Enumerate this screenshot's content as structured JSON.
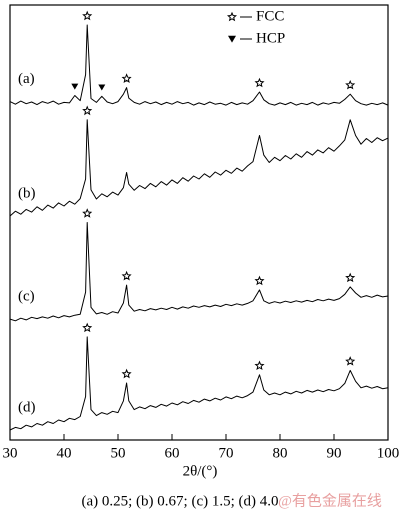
{
  "chart_data": {
    "type": "line",
    "x_label": "2θ/(°)",
    "caption": "(a) 0.25; (b) 0.67; (c) 1.5; (d) 4.0",
    "watermark": "@有色金属在线",
    "legend": [
      {
        "name": "FCC",
        "symbol": "star"
      },
      {
        "name": "HCP",
        "symbol": "triangle"
      }
    ],
    "xlim": [
      30,
      100
    ],
    "xticks": [
      30,
      40,
      50,
      60,
      70,
      80,
      90,
      100
    ],
    "ylim": [
      0,
      100
    ],
    "x": [
      30,
      31,
      32,
      33,
      34,
      35,
      36,
      37,
      38,
      39,
      40,
      41,
      42,
      43,
      44,
      44.3,
      45,
      46,
      47,
      48,
      49,
      50,
      51,
      51.6,
      52,
      53,
      54,
      55,
      56,
      57,
      58,
      59,
      60,
      61,
      62,
      63,
      64,
      65,
      66,
      67,
      68,
      69,
      70,
      71,
      72,
      73,
      74,
      75,
      76.2,
      77,
      78,
      79,
      80,
      81,
      82,
      83,
      84,
      85,
      86,
      87,
      88,
      89,
      90,
      91,
      92,
      93,
      94,
      95,
      96,
      97,
      98,
      99,
      100
    ],
    "series": [
      {
        "name": "(a)",
        "color": "#000000",
        "fcc_peaks": [
          44.3,
          51.6,
          76.2,
          93
        ],
        "hcp_peaks": [
          42,
          47
        ],
        "values": [
          77.8,
          77.2,
          77.9,
          77.3,
          77.7,
          77.1,
          77.8,
          77.4,
          77.9,
          77.2,
          77.6,
          77.5,
          79.2,
          78.0,
          84,
          95.4,
          78.5,
          77.6,
          79.0,
          77.7,
          77.3,
          77.8,
          79.5,
          81,
          78.6,
          77.6,
          77.2,
          77.8,
          77.3,
          77.7,
          77.1,
          77.6,
          77.2,
          77.8,
          77.3,
          77.6,
          77.0,
          77.5,
          77.1,
          77.7,
          77.2,
          77.4,
          77.0,
          77.6,
          77.1,
          77.5,
          77.2,
          78.0,
          80,
          78.2,
          77.3,
          77.0,
          77.5,
          77.1,
          77.6,
          77.0,
          77.4,
          77.1,
          77.6,
          77.0,
          77.5,
          77.2,
          77.6,
          77.4,
          78.3,
          79.5,
          78.0,
          77.3,
          77.0,
          77.4,
          77.1,
          77.5,
          77.0
        ]
      },
      {
        "name": "(b)",
        "color": "#000000",
        "fcc_peaks": [
          44.3
        ],
        "values": [
          51.5,
          52.6,
          51.9,
          53.0,
          52.4,
          53.6,
          52.8,
          54.0,
          53.3,
          54.5,
          53.8,
          54.9,
          54.2,
          55.5,
          60,
          73.6,
          57.5,
          55.4,
          56.6,
          55.9,
          57.0,
          56.3,
          58.0,
          61.5,
          58.8,
          57.4,
          58.5,
          57.8,
          59.0,
          58.2,
          59.4,
          58.6,
          59.8,
          59.0,
          60.3,
          59.5,
          60.7,
          60.0,
          61.2,
          60.4,
          61.6,
          60.9,
          62.0,
          61.3,
          62.5,
          61.8,
          63.0,
          64.0,
          70,
          65.5,
          63.8,
          65.0,
          64.2,
          65.4,
          64.6,
          65.8,
          65.0,
          66.3,
          65.5,
          66.7,
          66.0,
          67.2,
          66.4,
          67.6,
          69.0,
          73.6,
          70.0,
          68.0,
          69.3,
          68.4,
          69.5,
          68.8,
          69.4
        ]
      },
      {
        "name": "(c)",
        "color": "#000000",
        "fcc_peaks": [
          44.3,
          51.6,
          76.2,
          93
        ],
        "values": [
          27.8,
          27.4,
          28.0,
          27.6,
          28.2,
          27.9,
          28.3,
          28.0,
          28.5,
          28.1,
          28.6,
          28.3,
          28.7,
          28.9,
          34,
          50,
          30.5,
          29.0,
          29.3,
          28.9,
          29.5,
          29.2,
          31.5,
          35.6,
          31.0,
          29.6,
          30.0,
          29.7,
          30.2,
          29.9,
          30.3,
          30.0,
          30.5,
          30.1,
          30.6,
          30.3,
          30.8,
          30.5,
          30.9,
          30.6,
          31.0,
          30.7,
          31.2,
          30.9,
          31.3,
          31.0,
          31.4,
          32.0,
          34.5,
          32.0,
          31.4,
          31.8,
          31.5,
          31.9,
          31.6,
          32.0,
          31.7,
          32.1,
          31.8,
          32.3,
          32.0,
          32.4,
          32.1,
          32.5,
          33.5,
          35.2,
          33.8,
          32.8,
          33.2,
          32.8,
          33.3,
          32.9,
          33.1
        ]
      },
      {
        "name": "(d)",
        "color": "#000000",
        "fcc_peaks": [
          44.3,
          51.6,
          76.2,
          93
        ],
        "values": [
          2.3,
          2.9,
          2.6,
          3.4,
          3.0,
          3.8,
          3.4,
          4.2,
          3.8,
          4.6,
          4.2,
          5.0,
          4.7,
          5.4,
          10,
          23.7,
          7.0,
          5.6,
          6.3,
          5.9,
          6.6,
          6.3,
          9.0,
          13.1,
          9.0,
          7.0,
          7.6,
          7.2,
          7.9,
          7.5,
          8.2,
          7.8,
          8.5,
          8.1,
          8.8,
          8.4,
          9.1,
          8.7,
          9.4,
          9.0,
          9.6,
          9.2,
          9.9,
          9.5,
          10.1,
          9.7,
          10.2,
          11.0,
          15,
          11.5,
          10.4,
          10.8,
          10.4,
          11.0,
          10.6,
          11.2,
          10.8,
          11.4,
          11.0,
          11.5,
          11.1,
          11.6,
          11.3,
          11.8,
          13.0,
          16,
          13.5,
          12.0,
          12.4,
          11.9,
          12.3,
          11.8,
          12.0
        ]
      }
    ]
  }
}
